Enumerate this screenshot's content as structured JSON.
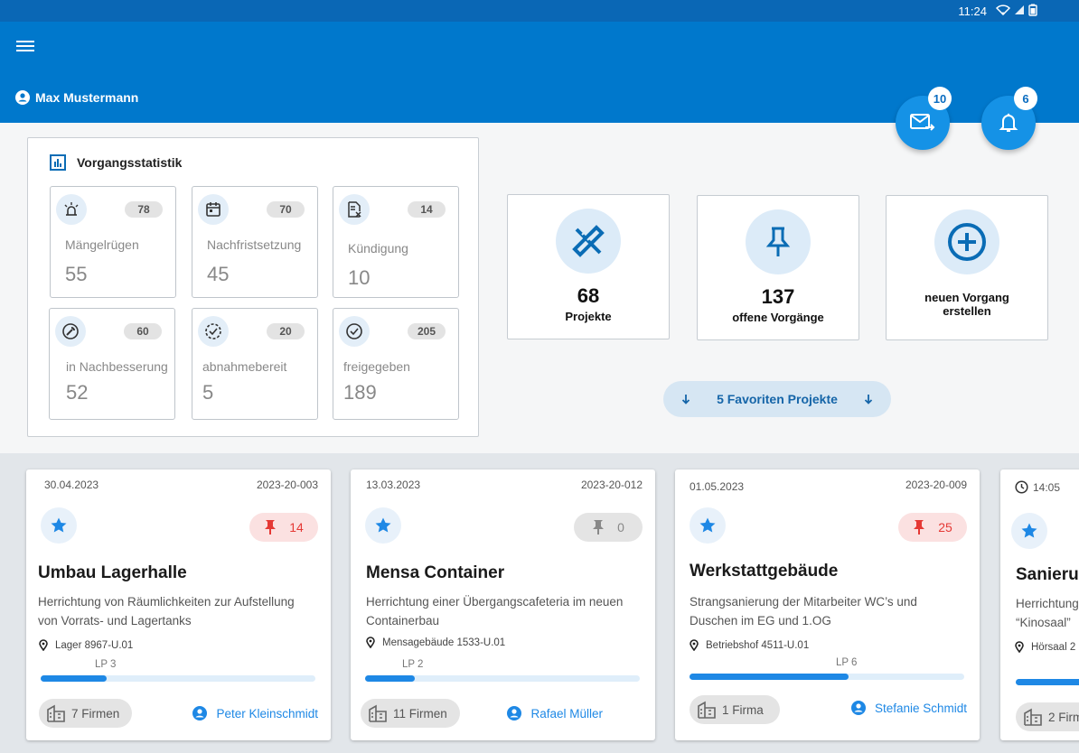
{
  "status_bar": {
    "time": "11:24"
  },
  "header": {
    "user_name": "Max Mustermann"
  },
  "messages": {
    "count": "10"
  },
  "notifications": {
    "count": "6"
  },
  "statistics": {
    "title": "Vorgangsstatistik",
    "items": [
      {
        "label": "Mängelrügen",
        "value": "55",
        "badge": "78",
        "icon": "siren-icon"
      },
      {
        "label": "Nachfristsetzung",
        "value": "45",
        "badge": "70",
        "icon": "calendar-icon"
      },
      {
        "label": "Kündigung",
        "value": "10",
        "badge": "14",
        "icon": "document-cancel-icon"
      },
      {
        "label": "in Nachbesserung",
        "value": "52",
        "badge": "60",
        "icon": "wrench-icon"
      },
      {
        "label": "abnahmebereit",
        "value": "5",
        "badge": "20",
        "icon": "dashed-check-icon"
      },
      {
        "label": "freigegeben",
        "value": "189",
        "badge": "205",
        "icon": "check-circle-icon"
      }
    ]
  },
  "tiles": {
    "projects": {
      "number": "68",
      "label": "Projekte"
    },
    "open_processes": {
      "number": "137",
      "label": "offene Vorgänge"
    },
    "new_process": {
      "label_line1": "neuen Vorgang",
      "label_line2": "erstellen"
    }
  },
  "favorites": {
    "label": "5 Favoriten Projekte"
  },
  "projects": [
    {
      "date": "30.04.2023",
      "ref": "2023-20-003",
      "pin_count": "14",
      "pin_state": "red",
      "title": "Umbau Lagerhalle",
      "description": "Herrichtung von Räumlichkeiten zur Aufstellung von Vorrats- und Lagertanks",
      "location": "Lager 8967-U.01",
      "phase": "LP 3",
      "progress": 0.24,
      "firms": "7 Firmen",
      "person": "Peter Kleinschmidt"
    },
    {
      "date": "13.03.2023",
      "ref": "2023-20-012",
      "pin_count": "0",
      "pin_state": "grey",
      "title": "Mensa Container",
      "description": "Herrichtung einer Übergangscafeteria im neuen Containerbau",
      "location": "Mensagebäude 1533-U.01",
      "phase": "LP 2",
      "progress": 0.18,
      "firms": "11 Firmen",
      "person": "Rafael Müller"
    },
    {
      "date": "01.05.2023",
      "ref": "2023-20-009",
      "pin_count": "25",
      "pin_state": "red",
      "title": "Werkstattgebäude",
      "description": "Strangsanierung der Mitarbeiter WC’s und Duschen im EG und 1.OG",
      "location": "Betriebshof 4511-U.01",
      "phase": "LP 6",
      "progress": 0.58,
      "firms": "1 Firma",
      "person": "Stefanie Schmidt"
    },
    {
      "time": "14:05",
      "title": "Sanieru",
      "description_line1": "Herrichtung",
      "description_line2": "“Kinosaal”",
      "location": "Hörsaal 2",
      "firms": "2 Firm"
    }
  ],
  "colors": {
    "primary": "#0078cc",
    "accent": "#1e88e5",
    "alert": "#e53935"
  }
}
